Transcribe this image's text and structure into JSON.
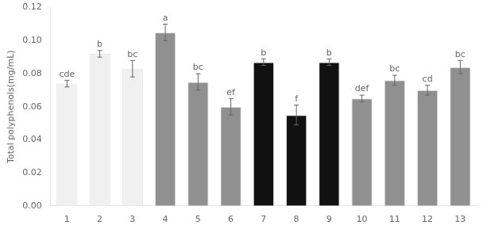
{
  "chart_data": {
    "type": "bar",
    "categories": [
      "1",
      "2",
      "3",
      "4",
      "5",
      "6",
      "7",
      "8",
      "9",
      "10",
      "11",
      "12",
      "13"
    ],
    "values": [
      0.074,
      0.092,
      0.083,
      0.105,
      0.075,
      0.06,
      0.087,
      0.055,
      0.087,
      0.065,
      0.076,
      0.07,
      0.084
    ],
    "errors": [
      0.002,
      0.002,
      0.005,
      0.005,
      0.005,
      0.005,
      0.002,
      0.006,
      0.002,
      0.002,
      0.003,
      0.003,
      0.004
    ],
    "annotations": [
      "cde",
      "b",
      "bc",
      "a",
      "bc",
      "ef",
      "b",
      "f",
      "b",
      "def",
      "bc",
      "cd",
      "bc"
    ],
    "colors": [
      "#f0f0f0",
      "#f0f0f0",
      "#f0f0f0",
      "#909090",
      "#909090",
      "#909090",
      "#111111",
      "#111111",
      "#111111",
      "#909090",
      "#909090",
      "#909090",
      "#909090"
    ],
    "ylabel": "Total polyphenols(mg/mL)",
    "ylim": [
      0,
      0.12
    ],
    "yticks": [
      {
        "value": 0.0,
        "label": "0.00"
      },
      {
        "value": 0.02,
        "label": "0.02"
      },
      {
        "value": 0.04,
        "label": "0.04"
      },
      {
        "value": 0.06,
        "label": "0.06"
      },
      {
        "value": 0.08,
        "label": "0.08"
      },
      {
        "value": 0.1,
        "label": "0.10"
      },
      {
        "value": 0.12,
        "label": "0.12"
      }
    ],
    "grid": false
  }
}
